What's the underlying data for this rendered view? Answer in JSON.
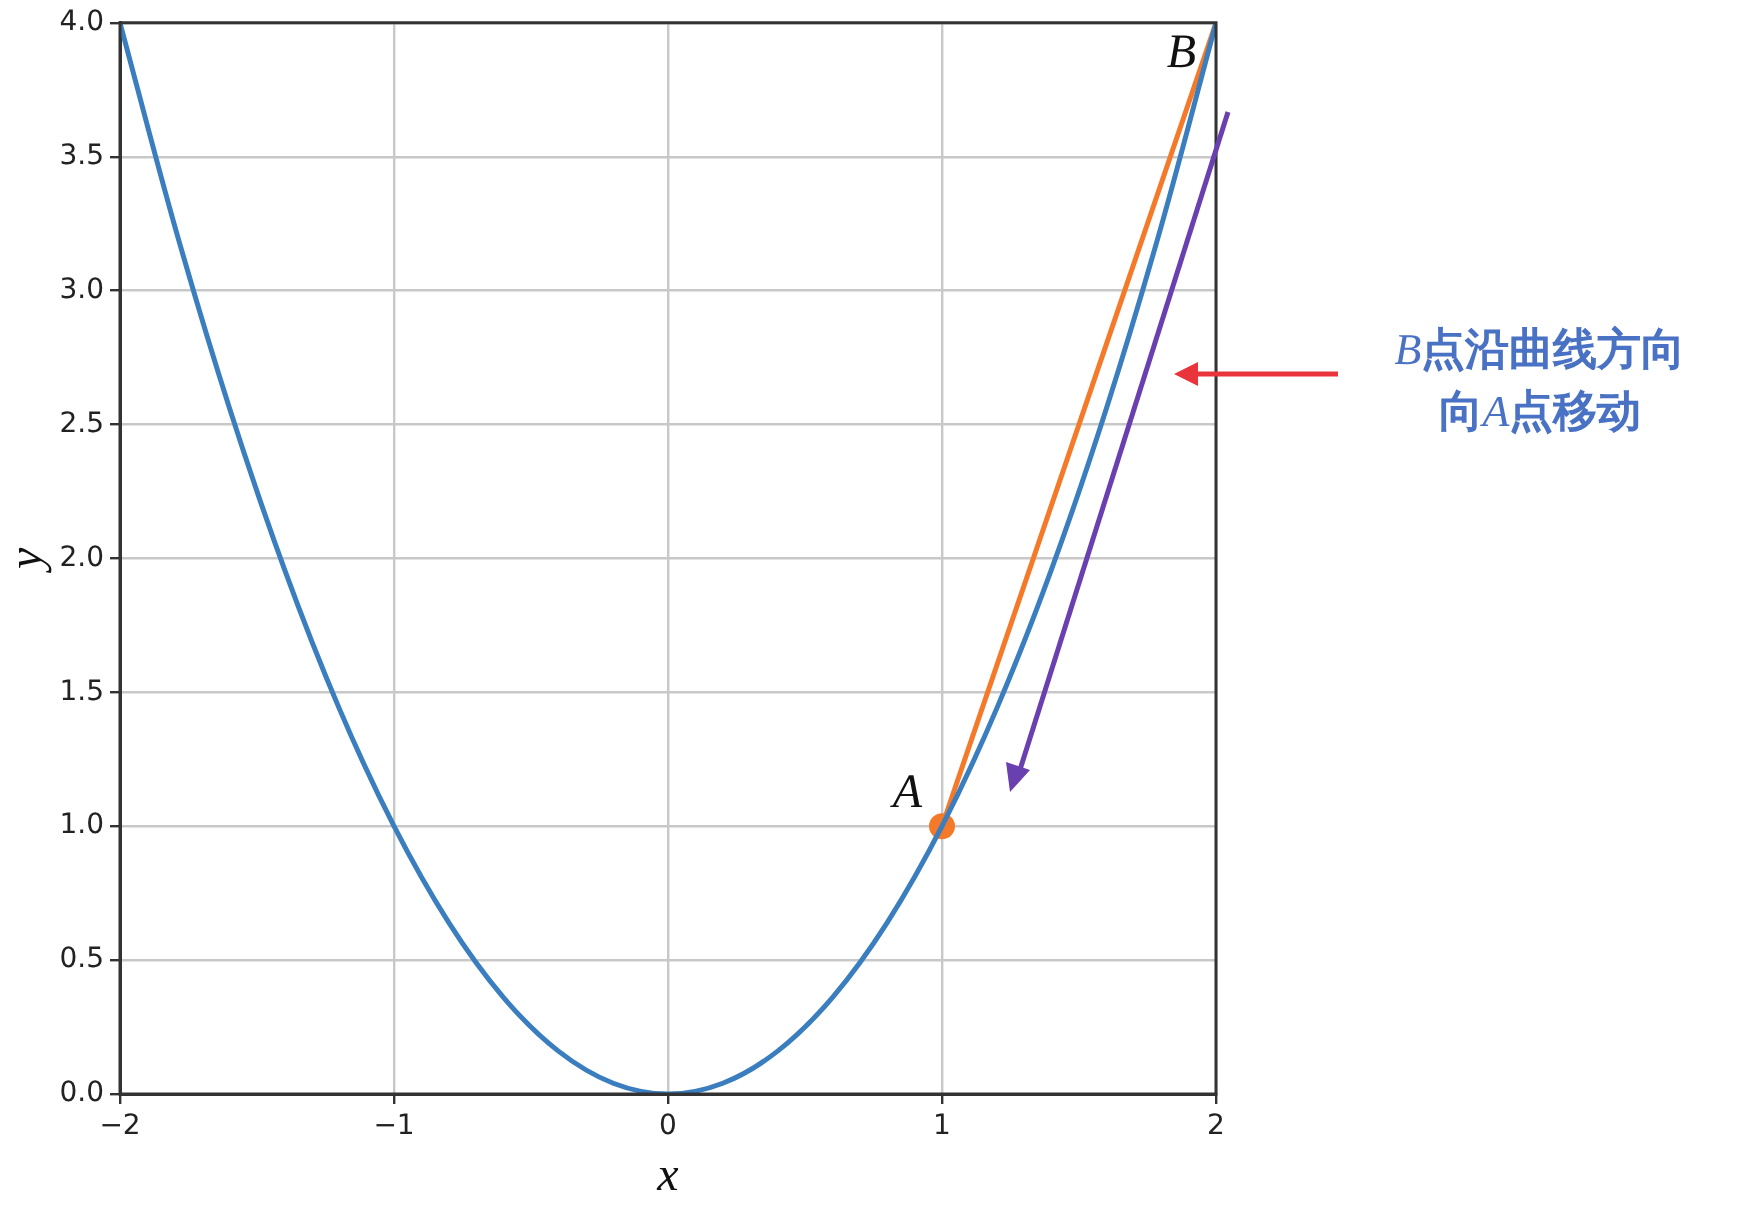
{
  "chart_data": {
    "type": "line",
    "xlabel": "x",
    "ylabel": "y",
    "xlim": [
      -2,
      2
    ],
    "ylim": [
      0,
      4
    ],
    "xticks": [
      {
        "value": -2,
        "label": "−2"
      },
      {
        "value": -1,
        "label": "−1"
      },
      0,
      1,
      2
    ],
    "yticks": [
      {
        "value": 0,
        "label": "0.0"
      },
      {
        "value": 0.5,
        "label": "0.5"
      },
      {
        "value": 1,
        "label": "1.0"
      },
      {
        "value": 1.5,
        "label": "1.5"
      },
      {
        "value": 2,
        "label": "2.0"
      },
      {
        "value": 2.5,
        "label": "2.5"
      },
      {
        "value": 3,
        "label": "3.0"
      },
      {
        "value": 3.5,
        "label": "3.5"
      },
      {
        "value": 4,
        "label": "4.0"
      }
    ],
    "grid": true,
    "legend": false,
    "series": [
      {
        "type": "line",
        "color": "#3a7ebf",
        "x": [
          -2,
          -1.8,
          -1.6,
          -1.4,
          -1.2,
          -1,
          -0.8,
          -0.6,
          -0.4,
          -0.2,
          0,
          0.2,
          0.4,
          0.6,
          0.8,
          1,
          1.2,
          1.4,
          1.6,
          1.8,
          2
        ],
        "values": [
          4,
          3.24,
          2.56,
          1.96,
          1.44,
          1,
          0.64,
          0.36,
          0.16,
          0.04,
          0,
          0.04,
          0.16,
          0.36,
          0.64,
          1,
          1.44,
          1.96,
          2.56,
          3.24,
          4
        ]
      },
      {
        "type": "line",
        "color": "#f47a2a",
        "x": [
          1,
          2
        ],
        "values": [
          1,
          4
        ]
      },
      {
        "type": "scatter",
        "color": "#f47a2a",
        "marker": "circle",
        "x": [
          1
        ],
        "values": [
          1
        ]
      }
    ],
    "annotations": [
      {
        "text": "A",
        "x": 1,
        "y": 1
      },
      {
        "text": "B",
        "x": 2,
        "y": 4
      },
      "B点沿曲线方向向A点移动"
    ]
  }
}
